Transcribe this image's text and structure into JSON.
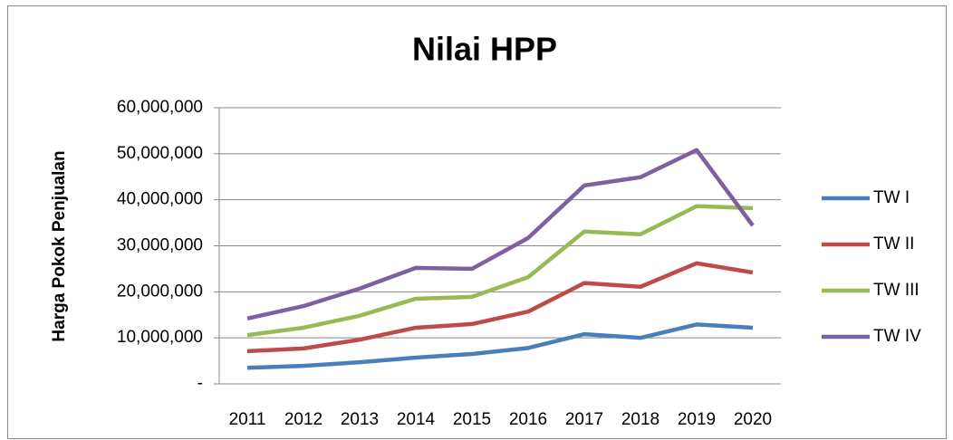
{
  "chart_data": {
    "type": "line",
    "title": "Nilai HPP",
    "y_label": "Harga Pokok Penjualan",
    "categories": [
      "2011",
      "2012",
      "2013",
      "2014",
      "2015",
      "2016",
      "2017",
      "2018",
      "2019",
      "2020"
    ],
    "series": [
      {
        "name": "TW I",
        "color": "#4a7ebb",
        "values": [
          3500000,
          3900000,
          4700000,
          5700000,
          6500000,
          7800000,
          10800000,
          10000000,
          12900000,
          12200000
        ]
      },
      {
        "name": "TW II",
        "color": "#be4b48",
        "values": [
          7100000,
          7700000,
          9600000,
          12200000,
          13000000,
          15700000,
          21900000,
          21100000,
          26200000,
          24200000
        ]
      },
      {
        "name": "TW III",
        "color": "#98b954",
        "values": [
          10600000,
          12200000,
          14800000,
          18500000,
          18900000,
          23200000,
          33100000,
          32500000,
          38600000,
          38200000
        ]
      },
      {
        "name": "TW IV",
        "color": "#7d60a0",
        "values": [
          14200000,
          16900000,
          20700000,
          25200000,
          25000000,
          31700000,
          43100000,
          44900000,
          50800000,
          34400000
        ]
      }
    ],
    "ylim": [
      0,
      60000000
    ],
    "yticks": [
      {
        "value": 0,
        "label": "-"
      },
      {
        "value": 10000000,
        "label": "10,000,000"
      },
      {
        "value": 20000000,
        "label": "20,000,000"
      },
      {
        "value": 30000000,
        "label": "30,000,000"
      },
      {
        "value": 40000000,
        "label": "40,000,000"
      },
      {
        "value": 50000000,
        "label": "50,000,000"
      },
      {
        "value": 60000000,
        "label": "60,000,000"
      }
    ],
    "grid": true,
    "legend": "right"
  }
}
